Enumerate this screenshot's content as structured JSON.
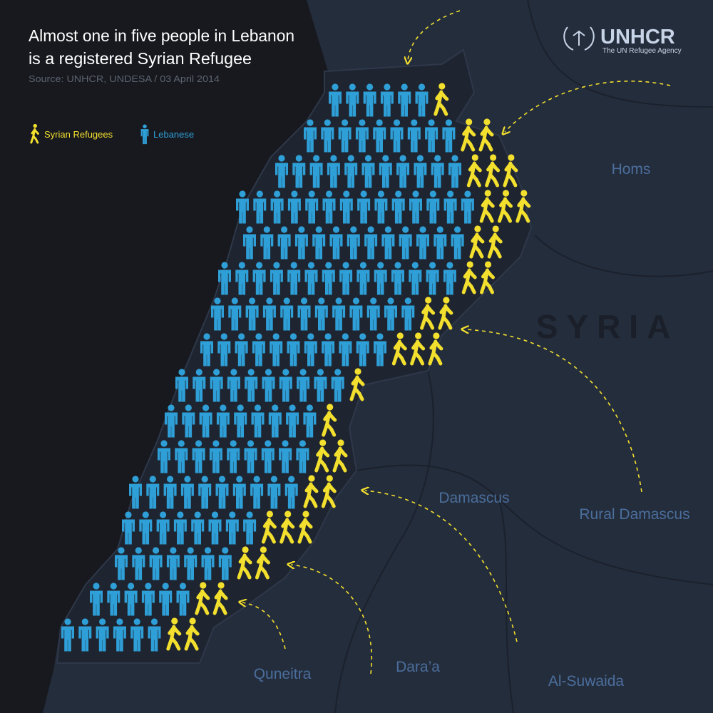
{
  "header": {
    "title_lines": [
      "Almost one in five people in Lebanon",
      "is a registered Syrian Refugee"
    ],
    "source": "Source: UNHCR, UNDESA / 03 April 2014"
  },
  "logo": {
    "name": "UNHCR",
    "tagline": "The UN Refugee Agency"
  },
  "legend": {
    "refugees": "Syrian Refugees",
    "lebanese": "Lebanese"
  },
  "places": {
    "homs": "Homs",
    "country": "SYRIA",
    "damascus": "Damascus",
    "rural_damascus": "Rural Damascus",
    "quneitra": "Quneitra",
    "daraa": "Dara’a",
    "suwaida": "Al-Suwaida"
  },
  "rows": [
    {
      "lebanese": 6,
      "refugees": 1
    },
    {
      "lebanese": 9,
      "refugees": 2
    },
    {
      "lebanese": 11,
      "refugees": 3
    },
    {
      "lebanese": 14,
      "refugees": 3
    },
    {
      "lebanese": 13,
      "refugees": 2
    },
    {
      "lebanese": 14,
      "refugees": 2
    },
    {
      "lebanese": 12,
      "refugees": 2
    },
    {
      "lebanese": 11,
      "refugees": 3
    },
    {
      "lebanese": 10,
      "refugees": 1
    },
    {
      "lebanese": 9,
      "refugees": 1
    },
    {
      "lebanese": 9,
      "refugees": 2
    },
    {
      "lebanese": 10,
      "refugees": 2
    },
    {
      "lebanese": 8,
      "refugees": 3
    },
    {
      "lebanese": 7,
      "refugees": 2
    },
    {
      "lebanese": 6,
      "refugees": 2
    },
    {
      "lebanese": 6,
      "refugees": 2
    }
  ]
}
